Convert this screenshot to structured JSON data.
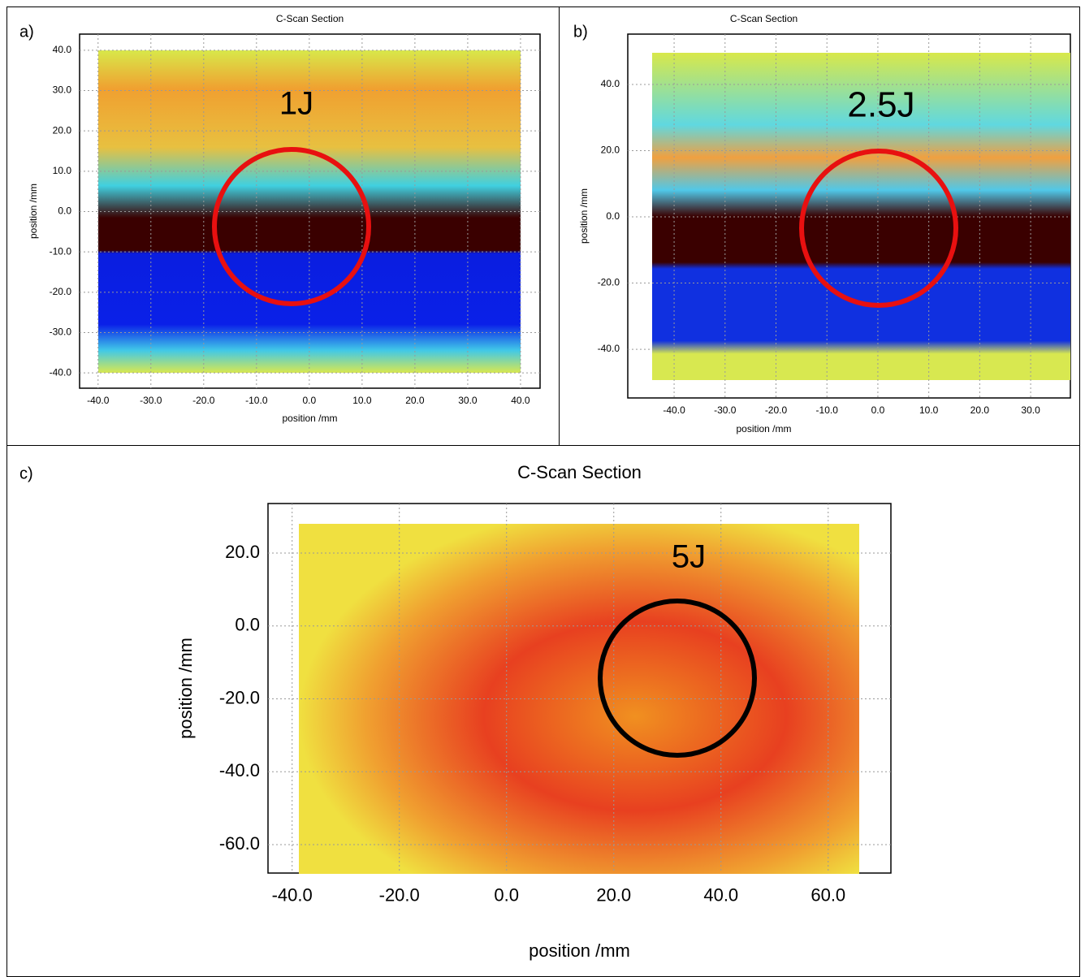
{
  "chart_data": [
    {
      "type": "heatmap",
      "panel": "a)",
      "title": "C-Scan Section",
      "annotation": "1J",
      "xlabel": "position /mm",
      "ylabel": "position /mm",
      "xlim": [
        -43.5,
        43.7
      ],
      "ylim": [
        -43.8,
        44
      ],
      "xticks": [
        {
          "value": -40,
          "label": "-40.0"
        },
        {
          "value": -30,
          "label": "-30.0"
        },
        {
          "value": -20,
          "label": "-20.0"
        },
        {
          "value": -10,
          "label": "-10.0"
        },
        {
          "value": 0,
          "label": "0.0"
        },
        {
          "value": 10,
          "label": "10.0"
        },
        {
          "value": 20,
          "label": "20.0"
        },
        {
          "value": 30,
          "label": "30.0"
        },
        {
          "value": 40,
          "label": "40.0"
        }
      ],
      "yticks": [
        {
          "value": 40,
          "label": "40.0"
        },
        {
          "value": 30,
          "label": "30.0"
        },
        {
          "value": 20,
          "label": "20.0"
        },
        {
          "value": 10,
          "label": "10.0"
        },
        {
          "value": 0,
          "label": "0.0"
        },
        {
          "value": -10,
          "label": "-10.0"
        },
        {
          "value": -20,
          "label": "-20.0"
        },
        {
          "value": -30,
          "label": "-30.0"
        },
        {
          "value": -40,
          "label": "-40.0"
        }
      ],
      "grid": true
    },
    {
      "type": "heatmap",
      "panel": "b)",
      "title": "C-Scan Section",
      "annotation": "2.5J",
      "xlabel": "position /mm",
      "ylabel": "position /mm",
      "xlim": [
        -49.1,
        37.8
      ],
      "ylim": [
        -54.7,
        55.2
      ],
      "xticks": [
        {
          "value": -40,
          "label": "-40.0"
        },
        {
          "value": -30,
          "label": "-30.0"
        },
        {
          "value": -20,
          "label": "-20.0"
        },
        {
          "value": -10,
          "label": "-10.0"
        },
        {
          "value": 0,
          "label": "0.0"
        },
        {
          "value": 10,
          "label": "10.0"
        },
        {
          "value": 20,
          "label": "20.0"
        },
        {
          "value": 30,
          "label": "30.0"
        }
      ],
      "yticks": [
        {
          "value": 40,
          "label": "40.0"
        },
        {
          "value": 20,
          "label": "20.0"
        },
        {
          "value": 0,
          "label": "0.0"
        },
        {
          "value": -20,
          "label": "-20.0"
        },
        {
          "value": -40,
          "label": "-40.0"
        }
      ],
      "grid": true
    },
    {
      "type": "heatmap",
      "panel": "c)",
      "title": "C-Scan Section",
      "annotation": "5J",
      "xlabel": "position /mm",
      "ylabel": "position /mm",
      "xlim": [
        -44.5,
        71.7
      ],
      "ylim": [
        -67.8,
        33.6
      ],
      "xticks": [
        {
          "value": -40,
          "label": "-40.0"
        },
        {
          "value": -20,
          "label": "-20.0"
        },
        {
          "value": 0,
          "label": "0.0"
        },
        {
          "value": 20,
          "label": "20.0"
        },
        {
          "value": 40,
          "label": "40.0"
        },
        {
          "value": 60,
          "label": "60.0"
        }
      ],
      "yticks": [
        {
          "value": 20,
          "label": "20.0"
        },
        {
          "value": 0,
          "label": "0.0"
        },
        {
          "value": -20,
          "label": "-20.0"
        },
        {
          "value": -40,
          "label": "-40.0"
        },
        {
          "value": -60,
          "label": "-60.0"
        }
      ],
      "grid": true
    }
  ]
}
